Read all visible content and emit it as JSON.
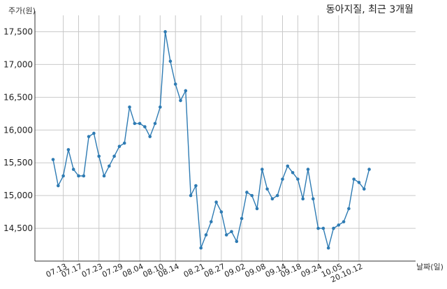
{
  "chart_data": {
    "type": "line",
    "title": "동아지질, 최근 3개월",
    "ylabel": "주가(원)",
    "xlabel": "날짜(일)",
    "ylim": [
      14000,
      17750
    ],
    "grid": true,
    "line_color": "#2e7bb3",
    "yticks": [
      14500,
      15000,
      15500,
      16000,
      16500,
      17000,
      17500
    ],
    "ytick_labels": [
      "14,500",
      "15,000",
      "15,500",
      "16,000",
      "16,500",
      "17,000",
      "17,500"
    ],
    "xtick_labels": [
      "07.13",
      "07.17",
      "07.23",
      "07.29",
      "08.04",
      "08.10",
      "08.14",
      "08.21",
      "08.27",
      "09.02",
      "09.08",
      "09.14",
      "09.18",
      "09.24",
      "10.05",
      "20.10.12"
    ],
    "xtick_index": [
      2,
      5,
      9,
      13,
      17,
      21,
      24,
      29,
      33,
      37,
      41,
      45,
      48,
      52,
      56,
      60
    ],
    "series": [
      {
        "values": [
          15550,
          15150,
          15300,
          15700,
          15400,
          15300,
          15300,
          15900,
          15950,
          15600,
          15300,
          15450,
          15600,
          15750,
          15800,
          16350,
          16100,
          16100,
          16050,
          15900,
          16100,
          16350,
          17500,
          17050,
          16700,
          16450,
          16600,
          15000,
          15150,
          14200,
          14400,
          14600,
          14900,
          14750,
          14400,
          14450,
          14300,
          14650,
          15050,
          15000,
          14800,
          15400,
          15100,
          14950,
          15000,
          15250,
          15450,
          15350,
          15250,
          14950,
          15400,
          14950,
          14500,
          14500,
          14200,
          14500,
          14550,
          14600,
          14800,
          15250,
          15200,
          15100,
          15400
        ]
      }
    ]
  }
}
